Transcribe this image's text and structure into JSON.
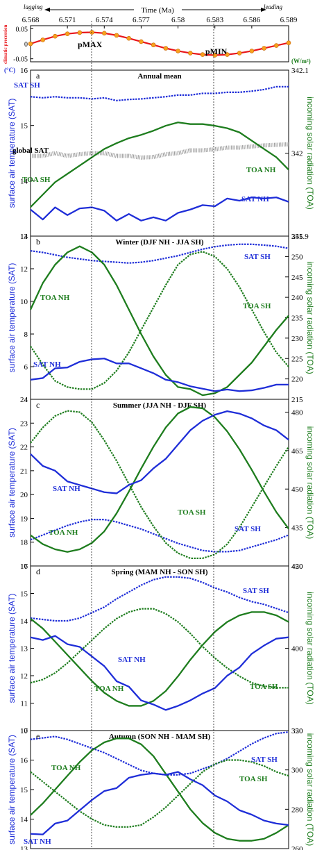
{
  "top": {
    "axis_title": "Time (Ma)",
    "left_note": "lagging",
    "right_note": "leading",
    "x_ticks": [
      "6.568",
      "6.571",
      "6.574",
      "6.577",
      "6.58",
      "6.583",
      "6.586",
      "6.589"
    ],
    "x_tick_values": [
      6.568,
      6.571,
      6.574,
      6.577,
      6.58,
      6.583,
      6.586,
      6.589
    ],
    "ylabel": "climatic precession",
    "y_ticks": [
      "0.05",
      "0",
      "-0.05"
    ],
    "y_tick_values": [
      0.05,
      0,
      -0.05
    ],
    "ylim": [
      -0.06,
      0.06
    ],
    "pmax_label": "pMAX",
    "pmin_label": "pMIN",
    "colors": {
      "line": "#e8151b",
      "marker": "#f8a11d"
    }
  },
  "common": {
    "left_ylabel": "surface air temperature (SAT)",
    "right_ylabel": "incoming solar radiation (TOA)",
    "left_unit": "(°C)",
    "right_unit": "(W/m²)",
    "colors": {
      "blue": "#1f2ed8",
      "green": "#1e7d1e",
      "gray": "#9a9a9a"
    }
  },
  "chart_data": [
    {
      "type": "line",
      "id": "top",
      "x": [
        6.568,
        6.569,
        6.57,
        6.571,
        6.572,
        6.573,
        6.574,
        6.575,
        6.576,
        6.577,
        6.578,
        6.579,
        6.58,
        6.581,
        6.582,
        6.583,
        6.584,
        6.585,
        6.586,
        6.587,
        6.588,
        6.589
      ],
      "series": [
        {
          "values": [
            0.0,
            0.013,
            0.025,
            0.033,
            0.037,
            0.038,
            0.035,
            0.028,
            0.018,
            0.007,
            -0.004,
            -0.015,
            -0.024,
            -0.031,
            -0.036,
            -0.038,
            -0.036,
            -0.031,
            -0.024,
            -0.015,
            -0.006,
            0.003
          ]
        }
      ],
      "ylim": [
        -0.06,
        0.06
      ]
    },
    {
      "type": "line",
      "panel_label": "a",
      "title": "Annual mean",
      "left_ticks": [
        "16",
        "15",
        "14",
        "13"
      ],
      "right_ticks": [
        "342.1",
        "342",
        "341.9"
      ],
      "ylim_left": [
        13,
        16
      ],
      "ylim_right": [
        341.9,
        342.1
      ],
      "x": [
        6.568,
        6.569,
        6.57,
        6.571,
        6.572,
        6.573,
        6.574,
        6.575,
        6.576,
        6.577,
        6.578,
        6.579,
        6.58,
        6.581,
        6.582,
        6.583,
        6.584,
        6.585,
        6.586,
        6.587,
        6.588,
        6.589
      ],
      "series": [
        {
          "name": "SAT SH",
          "axis": "left",
          "style": "dotted",
          "color": "blue",
          "values": [
            15.52,
            15.5,
            15.52,
            15.5,
            15.5,
            15.48,
            15.5,
            15.45,
            15.47,
            15.48,
            15.5,
            15.52,
            15.55,
            15.55,
            15.58,
            15.58,
            15.6,
            15.6,
            15.62,
            15.65,
            15.7,
            15.7
          ]
        },
        {
          "name": "global SAT",
          "axis": "left",
          "style": "band",
          "color": "gray",
          "values": [
            14.45,
            14.45,
            14.5,
            14.45,
            14.48,
            14.5,
            14.5,
            14.45,
            14.45,
            14.42,
            14.43,
            14.48,
            14.5,
            14.55,
            14.55,
            14.57,
            14.6,
            14.6,
            14.62,
            14.64,
            14.65,
            14.66
          ]
        },
        {
          "name": "TOA NH",
          "axis": "right",
          "style": "solid",
          "color": "green",
          "values": [
            341.935,
            341.95,
            341.965,
            341.975,
            341.985,
            341.995,
            342.005,
            342.012,
            342.018,
            342.022,
            342.027,
            342.033,
            342.037,
            342.035,
            342.035,
            342.033,
            342.03,
            342.025,
            342.015,
            342.005,
            341.995,
            341.98
          ]
        },
        {
          "name": "SAT NH",
          "axis": "left",
          "style": "solid",
          "color": "blue",
          "values": [
            13.48,
            13.3,
            13.52,
            13.38,
            13.5,
            13.52,
            13.46,
            13.28,
            13.4,
            13.28,
            13.34,
            13.28,
            13.42,
            13.48,
            13.56,
            13.54,
            13.68,
            13.64,
            13.7,
            13.68,
            13.7,
            13.62
          ]
        }
      ],
      "annotations": [
        "TOA SH"
      ]
    },
    {
      "type": "line",
      "panel_label": "b",
      "title": "Winter (DJF NH - JJA SH)",
      "left_ticks": [
        "14",
        "12",
        "10",
        "8",
        "6",
        "4"
      ],
      "right_ticks": [
        "255",
        "250",
        "245",
        "240",
        "235",
        "230",
        "225",
        "220",
        "215"
      ],
      "ylim_left": [
        4,
        14
      ],
      "ylim_right": [
        215,
        255
      ],
      "x": [
        6.568,
        6.569,
        6.57,
        6.571,
        6.572,
        6.573,
        6.574,
        6.575,
        6.576,
        6.577,
        6.578,
        6.579,
        6.58,
        6.581,
        6.582,
        6.583,
        6.584,
        6.585,
        6.586,
        6.587,
        6.588,
        6.589
      ],
      "series": [
        {
          "name": "SAT SH",
          "axis": "left",
          "style": "dotted",
          "color": "blue",
          "values": [
            13.1,
            13.0,
            12.85,
            12.7,
            12.6,
            12.5,
            12.45,
            12.4,
            12.35,
            12.4,
            12.5,
            12.65,
            12.8,
            13.0,
            13.2,
            13.35,
            13.45,
            13.5,
            13.5,
            13.45,
            13.38,
            13.25
          ]
        },
        {
          "name": "TOA NH",
          "axis": "right",
          "style": "solid",
          "color": "green",
          "values": [
            237,
            243.5,
            248,
            251,
            252.5,
            251,
            248,
            243,
            237,
            231,
            225.5,
            221,
            218,
            217.5,
            216,
            216.5,
            218,
            221,
            224,
            228,
            232,
            235.5
          ]
        },
        {
          "name": "TOA SH",
          "axis": "right",
          "style": "dotted",
          "color": "green",
          "values": [
            228,
            223.5,
            219.5,
            218,
            217.5,
            217.5,
            219,
            222,
            226.5,
            232,
            237.5,
            243,
            248,
            250.5,
            251.2,
            250,
            247,
            242.5,
            237,
            231.5,
            226.5,
            223
          ]
        },
        {
          "name": "SAT NH",
          "axis": "left",
          "style": "solid",
          "color": "blue",
          "values": [
            5.2,
            5.3,
            5.9,
            5.95,
            6.3,
            6.45,
            6.5,
            6.2,
            6.2,
            5.9,
            5.6,
            5.2,
            5.05,
            4.8,
            4.65,
            4.5,
            4.6,
            4.5,
            4.55,
            4.7,
            4.9,
            4.9
          ]
        }
      ]
    },
    {
      "type": "line",
      "panel_label": "c",
      "title": "Summer (JJA NH - DJF SH)",
      "left_ticks": [
        "24",
        "23",
        "22",
        "21",
        "20",
        "19",
        "18",
        "17"
      ],
      "right_ticks": [
        "480",
        "465",
        "450",
        "435",
        "420"
      ],
      "ylim_left": [
        17,
        24
      ],
      "ylim_right": [
        420,
        485
      ],
      "x": [
        6.568,
        6.569,
        6.57,
        6.571,
        6.572,
        6.573,
        6.574,
        6.575,
        6.576,
        6.577,
        6.578,
        6.579,
        6.58,
        6.581,
        6.582,
        6.583,
        6.584,
        6.585,
        6.586,
        6.587,
        6.588,
        6.589
      ],
      "series": [
        {
          "name": "SAT SH",
          "axis": "left",
          "style": "dotted",
          "color": "blue",
          "values": [
            18.1,
            18.3,
            18.5,
            18.7,
            18.85,
            18.95,
            18.95,
            18.85,
            18.7,
            18.55,
            18.35,
            18.15,
            17.95,
            17.8,
            17.65,
            17.6,
            17.6,
            17.65,
            17.8,
            17.95,
            18.1,
            18.3
          ]
        },
        {
          "name": "TOA SH",
          "axis": "right",
          "style": "dotted",
          "color": "green",
          "values": [
            468,
            474,
            478.5,
            480.5,
            480,
            476,
            469,
            461,
            452,
            443,
            435.5,
            429,
            425,
            423,
            423,
            424.5,
            428.5,
            435,
            443,
            451,
            459,
            466.5
          ]
        },
        {
          "name": "TOA NH",
          "axis": "right",
          "style": "solid",
          "color": "green",
          "values": [
            432,
            428.5,
            426.5,
            425.5,
            426.5,
            429,
            433.5,
            440.5,
            449,
            458,
            466.5,
            474,
            479.5,
            482,
            481.5,
            478,
            472.5,
            465.5,
            457.5,
            449,
            441,
            434.5
          ]
        },
        {
          "name": "SAT NH",
          "axis": "left",
          "style": "solid",
          "color": "blue",
          "values": [
            21.7,
            21.2,
            21.0,
            20.55,
            20.4,
            20.25,
            20.1,
            20.05,
            20.4,
            20.6,
            21.1,
            21.5,
            22.1,
            22.7,
            23.1,
            23.35,
            23.5,
            23.4,
            23.2,
            22.9,
            22.7,
            22.3
          ]
        }
      ]
    },
    {
      "type": "line",
      "panel_label": "d",
      "title": "Spring (MAM NH - SON SH)",
      "left_ticks": [
        "16",
        "15",
        "14",
        "13",
        "12",
        "11",
        "10"
      ],
      "right_ticks": [
        "450",
        "400",
        "350"
      ],
      "ylim_left": [
        10,
        16
      ],
      "ylim_right": [
        350,
        450
      ],
      "x": [
        6.568,
        6.569,
        6.57,
        6.571,
        6.572,
        6.573,
        6.574,
        6.575,
        6.576,
        6.577,
        6.578,
        6.579,
        6.58,
        6.581,
        6.582,
        6.583,
        6.584,
        6.585,
        6.586,
        6.587,
        6.588,
        6.589
      ],
      "series": [
        {
          "name": "SAT SH",
          "axis": "left",
          "style": "dotted",
          "color": "blue",
          "values": [
            14.1,
            14.05,
            14.0,
            14.0,
            14.1,
            14.3,
            14.5,
            14.8,
            15.05,
            15.3,
            15.5,
            15.6,
            15.6,
            15.55,
            15.4,
            15.2,
            15.05,
            14.85,
            14.7,
            14.6,
            14.45,
            14.3
          ]
        },
        {
          "name": "TOA NH",
          "axis": "right",
          "style": "solid",
          "color": "green",
          "values": [
            418,
            412,
            404,
            396,
            388,
            380,
            373,
            368,
            365,
            365,
            368,
            374,
            383,
            393,
            402,
            410,
            416,
            420,
            422,
            422,
            420,
            416
          ]
        },
        {
          "name": "TOA SH",
          "axis": "right",
          "style": "dotted",
          "color": "green",
          "values": [
            379,
            381,
            385,
            391,
            398,
            405,
            412,
            418,
            422,
            424,
            424,
            421,
            416,
            409,
            401,
            394,
            388,
            383,
            379,
            377,
            376,
            376
          ]
        },
        {
          "name": "SAT NH",
          "axis": "left",
          "style": "solid",
          "color": "blue",
          "values": [
            13.4,
            13.3,
            13.45,
            13.15,
            13.05,
            12.7,
            12.35,
            11.8,
            11.6,
            11.1,
            10.95,
            10.75,
            10.9,
            11.1,
            11.35,
            11.55,
            12.0,
            12.3,
            12.8,
            13.1,
            13.35,
            13.4
          ]
        }
      ]
    },
    {
      "type": "line",
      "panel_label": "e",
      "title": "Autumn (SON NH - MAM SH)",
      "left_ticks": [
        "17",
        "16",
        "15",
        "14",
        "13"
      ],
      "right_ticks": [
        "320",
        "300",
        "280",
        "260"
      ],
      "ylim_left": [
        13,
        17
      ],
      "ylim_right": [
        260,
        320
      ],
      "x": [
        6.568,
        6.569,
        6.57,
        6.571,
        6.572,
        6.573,
        6.574,
        6.575,
        6.576,
        6.577,
        6.578,
        6.579,
        6.58,
        6.581,
        6.582,
        6.583,
        6.584,
        6.585,
        6.586,
        6.587,
        6.588,
        6.589
      ],
      "series": [
        {
          "name": "SAT SH",
          "axis": "left",
          "style": "dotted",
          "color": "blue",
          "values": [
            16.7,
            16.75,
            16.8,
            16.7,
            16.55,
            16.4,
            16.25,
            16.05,
            15.85,
            15.65,
            15.55,
            15.5,
            15.5,
            15.55,
            15.7,
            15.85,
            16.05,
            16.3,
            16.55,
            16.75,
            16.9,
            16.95
          ]
        },
        {
          "name": "TOA SH",
          "axis": "right",
          "style": "dotted",
          "color": "green",
          "values": [
            299,
            294,
            289,
            284,
            279,
            275,
            272,
            271,
            271,
            272,
            276,
            281,
            287,
            293,
            299,
            303,
            305,
            305,
            304,
            302,
            299,
            297
          ]
        },
        {
          "name": "TOA NH",
          "axis": "right",
          "style": "solid",
          "color": "green",
          "values": [
            277,
            283,
            290,
            297,
            304,
            310,
            314,
            316,
            316,
            313,
            307,
            298,
            289,
            280,
            273,
            268,
            265,
            264,
            264,
            265,
            268,
            272
          ]
        },
        {
          "name": "SAT NH",
          "axis": "left",
          "style": "solid",
          "color": "blue",
          "values": [
            13.5,
            13.48,
            13.85,
            13.95,
            14.3,
            14.65,
            14.95,
            15.05,
            15.4,
            15.5,
            15.55,
            15.5,
            15.6,
            15.35,
            15.15,
            14.8,
            14.6,
            14.3,
            14.15,
            13.95,
            13.85,
            13.8
          ]
        }
      ]
    }
  ],
  "labels": {
    "a": [
      {
        "text": "SAT SH"
      },
      {
        "text": "global SAT"
      },
      {
        "text": "TOA SH"
      },
      {
        "text": "TOA NH"
      },
      {
        "text": "SAT NH"
      }
    ],
    "b": [
      {
        "text": "SAT SH"
      },
      {
        "text": "TOA SH"
      },
      {
        "text": "TOA NH"
      },
      {
        "text": "SAT NH"
      }
    ],
    "c": [
      {
        "text": "SAT NH"
      },
      {
        "text": "TOA SH"
      },
      {
        "text": "SAT SH"
      },
      {
        "text": "TOA NH"
      }
    ],
    "d": [
      {
        "text": "SAT SH"
      },
      {
        "text": "SAT NH"
      },
      {
        "text": "TOA NH"
      },
      {
        "text": "TOA SH"
      }
    ],
    "e": [
      {
        "text": "SAT SH"
      },
      {
        "text": "TOA NH"
      },
      {
        "text": "TOA SH"
      },
      {
        "text": "SAT NH"
      }
    ]
  }
}
